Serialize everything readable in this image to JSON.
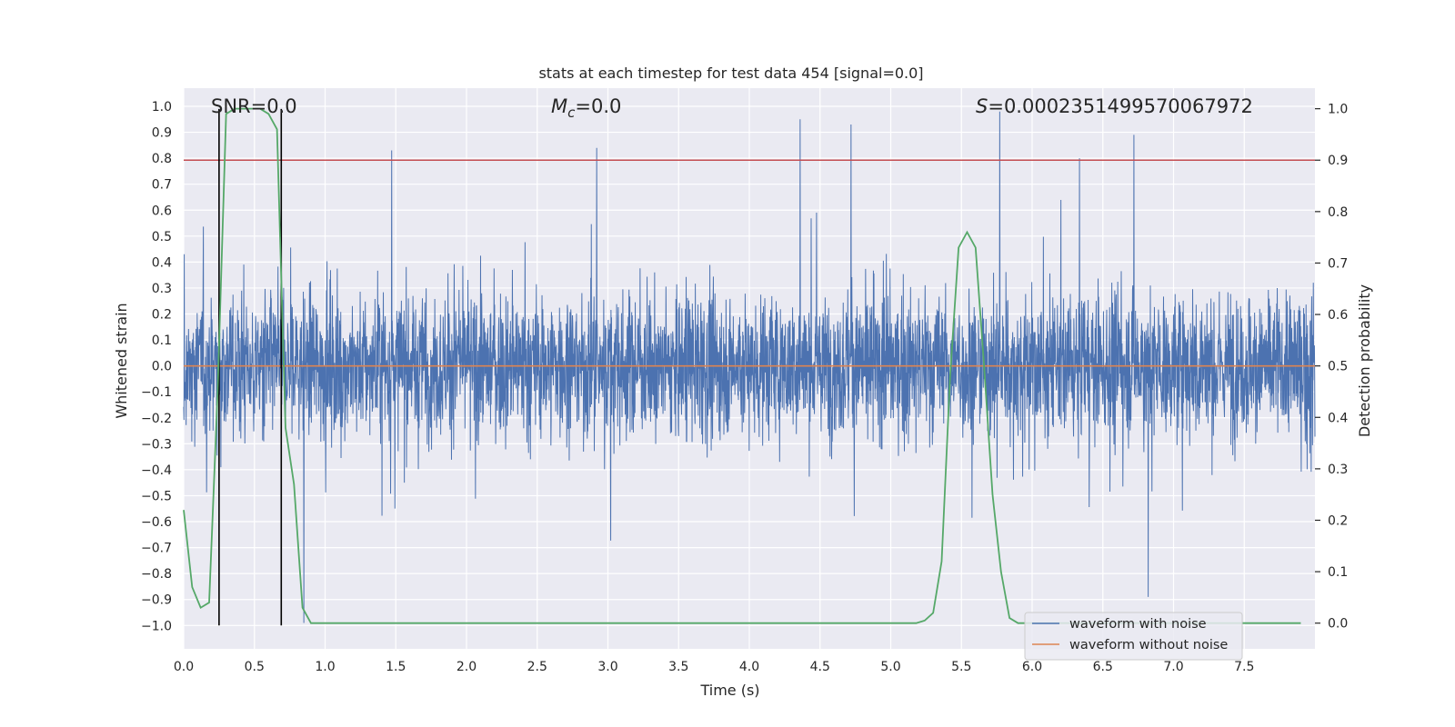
{
  "chart_data": {
    "type": "line",
    "title": "stats at each timestep for test data 454 [signal=0.0]",
    "xlabel": "Time (s)",
    "ylabel": "Whitened strain",
    "y2label": "Detection probability",
    "xlim": [
      0.0,
      8.0
    ],
    "ylim": [
      -1.09,
      1.07
    ],
    "y2lim": [
      -0.05,
      1.04
    ],
    "x_ticks": [
      0.0,
      0.5,
      1.0,
      1.5,
      2.0,
      2.5,
      3.0,
      3.5,
      4.0,
      4.5,
      5.0,
      5.5,
      6.0,
      6.5,
      7.0,
      7.5
    ],
    "x_tick_labels": [
      "0.0",
      "0.5",
      "1.0",
      "1.5",
      "2.0",
      "2.5",
      "3.0",
      "3.5",
      "4.0",
      "4.5",
      "5.0",
      "5.5",
      "6.0",
      "6.5",
      "7.0",
      "7.5"
    ],
    "y_ticks": [
      1.0,
      0.9,
      0.8,
      0.7,
      0.6,
      0.5,
      0.4,
      0.3,
      0.2,
      0.1,
      0.0,
      -0.1,
      -0.2,
      -0.3,
      -0.4,
      -0.5,
      -0.6,
      -0.7,
      -0.8,
      -0.9,
      -1.0
    ],
    "y_tick_labels": [
      "1.0",
      "0.9",
      "0.8",
      "0.7",
      "0.6",
      "0.5",
      "0.4",
      "0.3",
      "0.2",
      "0.1",
      "0.0",
      "−0.1",
      "−0.2",
      "−0.3",
      "−0.4",
      "−0.5",
      "−0.6",
      "−0.7",
      "−0.8",
      "−0.9",
      "−1.0"
    ],
    "y2_ticks": [
      1.0,
      0.9,
      0.8,
      0.7,
      0.6,
      0.5,
      0.4,
      0.3,
      0.2,
      0.1,
      0.0
    ],
    "y2_tick_labels": [
      "1.0",
      "0.9",
      "0.8",
      "0.7",
      "0.6",
      "0.5",
      "0.4",
      "0.3",
      "0.2",
      "0.1",
      "0.0"
    ],
    "grid": true,
    "legend_position": "lower-right",
    "annotations": {
      "snr": "SNR=0.0",
      "mc_symbol": "M",
      "mc_sub": "c",
      "mc_value": "=0.0",
      "s_symbol": "S",
      "s_value": "=0.0002351499570067972"
    },
    "series": [
      {
        "name": "waveform with noise",
        "color": "#4c72b0",
        "style": "dense noisy trace, envelope roughly ±0.4 to ±0.6 with spikes",
        "range_x": [
          0.0,
          8.0
        ],
        "notable_peaks": [
          {
            "x": 0.85,
            "y": -0.99
          },
          {
            "x": 1.47,
            "y": 0.83
          },
          {
            "x": 2.92,
            "y": 0.84
          },
          {
            "x": 4.36,
            "y": 0.95
          },
          {
            "x": 4.72,
            "y": 0.93
          },
          {
            "x": 5.77,
            "y": 0.98
          },
          {
            "x": 6.72,
            "y": 0.89
          },
          {
            "x": 6.82,
            "y": -0.89
          }
        ]
      },
      {
        "name": "waveform without noise",
        "color": "#dd8452",
        "x": [
          0.0,
          8.0
        ],
        "y": [
          0.0,
          0.0
        ]
      },
      {
        "name": "detection probability",
        "axis": "right",
        "color": "#55a868",
        "x": [
          0.0,
          0.06,
          0.12,
          0.18,
          0.24,
          0.3,
          0.36,
          0.42,
          0.48,
          0.54,
          0.6,
          0.66,
          0.72,
          0.78,
          0.84,
          0.9,
          1.0,
          1.5,
          2.0,
          3.0,
          4.0,
          5.0,
          5.18,
          5.24,
          5.3,
          5.36,
          5.42,
          5.48,
          5.54,
          5.6,
          5.66,
          5.72,
          5.78,
          5.84,
          5.9,
          6.5,
          7.0,
          7.5,
          7.9
        ],
        "y": [
          0.22,
          0.07,
          0.03,
          0.04,
          0.45,
          0.99,
          1.0,
          1.0,
          1.0,
          1.0,
          0.99,
          0.96,
          0.38,
          0.27,
          0.03,
          0.0,
          0.0,
          0.0,
          0.0,
          0.0,
          0.0,
          0.0,
          0.0,
          0.005,
          0.02,
          0.12,
          0.48,
          0.73,
          0.76,
          0.73,
          0.5,
          0.25,
          0.1,
          0.01,
          0.0,
          0.0,
          0.0,
          0.0,
          0.0
        ]
      }
    ],
    "horizontal_lines": [
      {
        "name": "threshold",
        "color": "#c44e52",
        "y2": 0.9
      }
    ],
    "vertical_lines": [
      {
        "name": "marker-start",
        "color": "#000000",
        "x": 0.25,
        "y_range": [
          -1.0,
          0.99
        ]
      },
      {
        "name": "marker-end",
        "color": "#000000",
        "x": 0.69,
        "y_range": [
          -1.0,
          0.99
        ]
      }
    ]
  }
}
